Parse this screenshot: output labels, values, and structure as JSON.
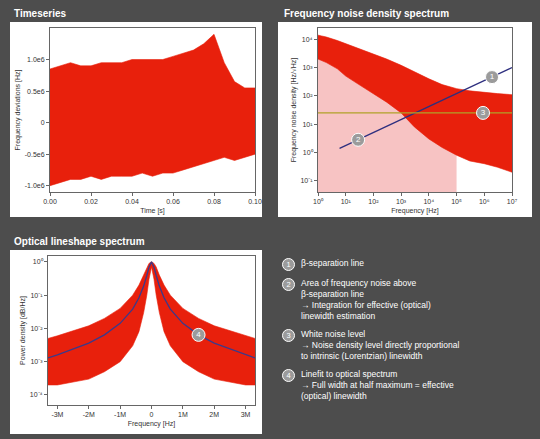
{
  "chart_data": [
    {
      "type": "band",
      "title": "Timeseries",
      "x_label": "Time [s]",
      "y_label": "Frequency deviations [Hz]",
      "x": [
        0,
        0.005,
        0.01,
        0.015,
        0.02,
        0.025,
        0.03,
        0.035,
        0.04,
        0.045,
        0.05,
        0.055,
        0.06,
        0.065,
        0.07,
        0.075,
        0.08,
        0.085,
        0.09,
        0.095,
        0.1
      ],
      "series": [
        {
          "color": "#e8200c",
          "upper": [
            850000,
            900000,
            950000,
            900000,
            900000,
            950000,
            950000,
            950000,
            1000000,
            1000000,
            1000000,
            1000000,
            1050000,
            1100000,
            1150000,
            1250000,
            1400000,
            950000,
            650000,
            550000,
            550000
          ],
          "lower": [
            -1000000,
            -950000,
            -900000,
            -900000,
            -850000,
            -900000,
            -850000,
            -850000,
            -850000,
            -800000,
            -850000,
            -800000,
            -800000,
            -750000,
            -700000,
            -650000,
            -600000,
            -550000,
            -600000,
            -550000,
            -500000
          ]
        }
      ],
      "xlim": [
        0,
        0.1
      ],
      "xticks": [
        {
          "value": 0,
          "label": "0.00"
        },
        {
          "value": 0.02,
          "label": "0.02"
        },
        {
          "value": 0.04,
          "label": "0.04"
        },
        {
          "value": 0.06,
          "label": "0.06"
        },
        {
          "value": 0.08,
          "label": "0.08"
        },
        {
          "value": 0.1,
          "label": "0.10"
        }
      ],
      "ylim": [
        -1100000,
        1500000
      ],
      "yticks": [
        {
          "value": -1000000,
          "label": "-1.0e6"
        },
        {
          "value": -500000,
          "label": "-0.5e6"
        },
        0,
        {
          "value": 500000,
          "label": "0.5e6"
        },
        {
          "value": 1000000,
          "label": "1.0e6"
        }
      ],
      "grid": false
    },
    {
      "type": "line",
      "title": "Frequency noise density spectrum",
      "x_label": "Frequency [Hz]",
      "y_label": "Frequency noise density [Hz/√Hz]",
      "log": true,
      "series": [
        {
          "type": "area",
          "color": "#f7c3c3"
        },
        {
          "type": "band",
          "color": "#e8200c",
          "x": [
            1,
            2,
            5,
            10,
            30,
            100,
            300,
            1000,
            3000,
            10000,
            30000,
            100000,
            300000,
            1000000,
            3000000,
            10000000
          ],
          "upper": [
            14000,
            12000,
            9000,
            7000,
            4500,
            3000,
            2000,
            1200,
            700,
            400,
            250,
            180,
            150,
            130,
            120,
            110
          ],
          "lower": [
            2000,
            1500,
            900,
            500,
            250,
            120,
            60,
            25,
            8,
            3,
            1.5,
            0.8,
            0.5,
            0.4,
            0.3,
            0.2
          ]
        },
        {
          "color": "#2e2f7f",
          "x": [
            6,
            10000000
          ],
          "values": [
            1.4,
            1000
          ]
        },
        {
          "color": "#b0a229",
          "x": [
            1,
            10000000
          ],
          "values": [
            25,
            25
          ]
        }
      ],
      "annotations": [
        {
          "text": "1",
          "x": 1900000,
          "y": 460
        },
        {
          "text": "2",
          "x": 28,
          "y": 2.8
        },
        {
          "text": "3",
          "x": 900000,
          "y": 25
        }
      ],
      "xlim": [
        1,
        10000000
      ],
      "xticks": [
        {
          "value": 1,
          "label": "10⁰"
        },
        {
          "value": 10,
          "label": "10¹"
        },
        {
          "value": 100,
          "label": "10²"
        },
        {
          "value": 1000,
          "label": "10³"
        },
        {
          "value": 10000,
          "label": "10⁴"
        },
        {
          "value": 100000,
          "label": "10⁵"
        },
        {
          "value": 1000000,
          "label": "10⁶"
        },
        {
          "value": 10000000,
          "label": "10⁷"
        }
      ],
      "ylim": [
        0.04,
        25000
      ],
      "yticks": [
        {
          "value": 0.1,
          "label": "10⁻¹"
        },
        {
          "value": 1,
          "label": "10⁰"
        },
        {
          "value": 10,
          "label": "10¹"
        },
        {
          "value": 100,
          "label": "10²"
        },
        {
          "value": 1000,
          "label": "10³"
        },
        {
          "value": 10000,
          "label": "10⁴"
        }
      ],
      "grid": false
    },
    {
      "type": "line",
      "title": "Optical lineshape spectrum",
      "x_label": "Frequency [Hz]",
      "y_label": "Power density [dB/Hz]",
      "log": "y",
      "x": [
        -3300000,
        -3000000,
        -2000000,
        -1500000,
        -1000000,
        -600000,
        -400000,
        -250000,
        -150000,
        -80000,
        0,
        80000,
        150000,
        250000,
        400000,
        600000,
        1000000,
        1500000,
        2000000,
        3000000,
        3300000
      ],
      "series": [
        {
          "type": "band",
          "color": "#e8200c",
          "upper": [
            0.005,
            0.006,
            0.012,
            0.02,
            0.04,
            0.1,
            0.2,
            0.4,
            0.7,
            0.9,
            1.0,
            0.9,
            0.7,
            0.4,
            0.2,
            0.1,
            0.04,
            0.02,
            0.012,
            0.006,
            0.005
          ],
          "lower": [
            0.0002,
            0.0002,
            0.0003,
            0.0005,
            0.001,
            0.003,
            0.008,
            0.03,
            0.1,
            0.3,
            0.7,
            0.3,
            0.1,
            0.03,
            0.008,
            0.003,
            0.001,
            0.0005,
            0.0003,
            0.0002,
            0.0002
          ]
        },
        {
          "color": "#3a3a8c",
          "values": [
            0.0013,
            0.0016,
            0.0036,
            0.0064,
            0.0142,
            0.038,
            0.083,
            0.187,
            0.39,
            0.69,
            1.0,
            0.69,
            0.39,
            0.187,
            0.083,
            0.038,
            0.0142,
            0.0064,
            0.0036,
            0.0016,
            0.0013
          ]
        }
      ],
      "annotations": [
        {
          "text": "4",
          "x": 1500000,
          "y": 0.0064
        }
      ],
      "xlim": [
        -3300000,
        3300000
      ],
      "xticks": [
        {
          "value": -3000000,
          "label": "-3M"
        },
        {
          "value": -2000000,
          "label": "-2M"
        },
        {
          "value": -1000000,
          "label": "-1M"
        },
        0,
        {
          "value": 1000000,
          "label": "1M"
        },
        {
          "value": 2000000,
          "label": "2M"
        },
        {
          "value": 3000000,
          "label": "3M"
        }
      ],
      "ylim": [
        5e-05,
        1.5
      ],
      "yticks": [
        {
          "value": 0.0001,
          "label": "10⁻⁴"
        },
        {
          "value": 0.001,
          "label": "10⁻³"
        },
        {
          "value": 0.01,
          "label": "10⁻²"
        },
        {
          "value": 0.1,
          "label": "10⁻¹"
        },
        {
          "value": 1,
          "label": "10⁰"
        }
      ],
      "grid": false
    }
  ],
  "key": [
    {
      "number": "1",
      "lines": [
        "β-separation line"
      ]
    },
    {
      "number": "2",
      "lines": [
        "Area of frequency noise above",
        "β-separation line",
        "→ Integration for effective (optical)",
        "linewidth estimation"
      ]
    },
    {
      "number": "3",
      "lines": [
        "White noise level",
        "→ Noise density level directly proportional",
        "to intrinsic (Lorentzian) linewidth"
      ]
    },
    {
      "number": "4",
      "lines": [
        "Linefit to optical spectrum",
        "→ Full width at half maximum = effective",
        "(optical) linewidth"
      ]
    }
  ]
}
